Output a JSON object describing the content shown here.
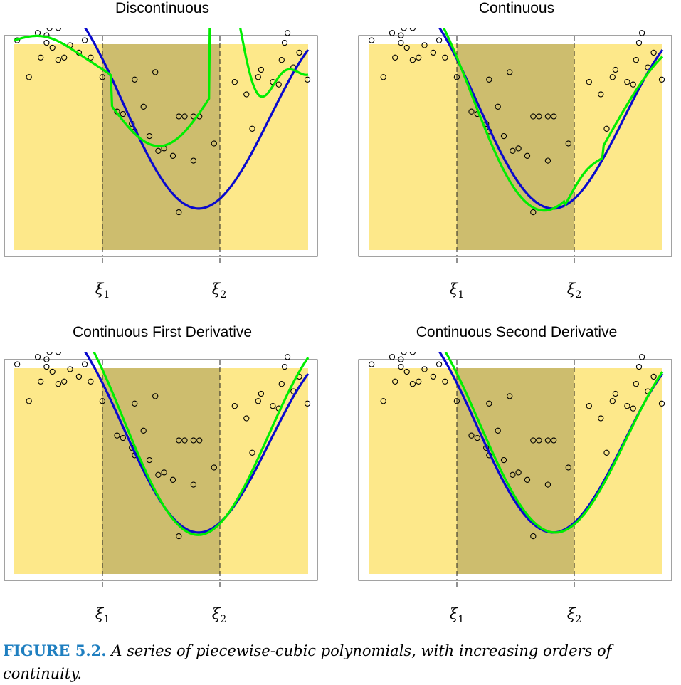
{
  "figure": {
    "label": "FIGURE 5.2.",
    "caption": "A series of piecewise-cubic polynomials, with increasing orders of continuity.",
    "knot_labels": [
      "ξ",
      "ξ"
    ],
    "knot_subscripts": [
      "1",
      "2"
    ]
  },
  "colors": {
    "outer_region": "#fde88a",
    "middle_region": "#cdbd6e",
    "true_function": "#0a0acd",
    "fit": "#00ee00",
    "points": "#000000",
    "caption_label": "#1f7fc0"
  },
  "chart_data": [
    {
      "type": "scatter",
      "title": "Discontinuous",
      "xlabel": "",
      "ylabel": "",
      "knots": [
        0.333,
        0.667
      ],
      "series": []
    },
    {
      "type": "scatter",
      "title": "Continuous",
      "xlabel": "",
      "ylabel": "",
      "knots": [
        0.333,
        0.667
      ],
      "series": []
    },
    {
      "type": "scatter",
      "title": "Continuous First Derivative",
      "xlabel": "",
      "ylabel": "",
      "knots": [
        0.333,
        0.667
      ],
      "series": []
    },
    {
      "type": "scatter",
      "title": "Continuous Second Derivative",
      "xlabel": "",
      "ylabel": "",
      "knots": [
        0.333,
        0.667
      ],
      "series": []
    }
  ],
  "points": [
    [
      0.01,
      0.47
    ],
    [
      0.05,
      0.32
    ],
    [
      0.07,
      0.58
    ],
    [
      0.08,
      0.55
    ],
    [
      0.08,
      0.5
    ],
    [
      0.09,
      0.4
    ],
    [
      0.11,
      0.46
    ],
    [
      0.11,
      0.49
    ],
    [
      0.12,
      0.52
    ],
    [
      0.13,
      0.44
    ],
    [
      0.15,
      0.52
    ],
    [
      0.15,
      0.39
    ],
    [
      0.17,
      0.4
    ],
    [
      0.19,
      0.45
    ],
    [
      0.21,
      0.55
    ],
    [
      0.22,
      0.42
    ],
    [
      0.24,
      0.47
    ],
    [
      0.26,
      0.4
    ],
    [
      0.3,
      0.32
    ],
    [
      0.35,
      0.18
    ],
    [
      0.37,
      0.17
    ],
    [
      0.4,
      0.13
    ],
    [
      0.41,
      0.31
    ],
    [
      0.41,
      0.1
    ],
    [
      0.44,
      0.2
    ],
    [
      0.46,
      0.08
    ],
    [
      0.48,
      0.34
    ],
    [
      0.49,
      0.02
    ],
    [
      0.51,
      0.03
    ],
    [
      0.54,
      0.0
    ],
    [
      0.56,
      0.16
    ],
    [
      0.56,
      -0.23
    ],
    [
      0.58,
      0.16
    ],
    [
      0.61,
      -0.02
    ],
    [
      0.61,
      0.16
    ],
    [
      0.63,
      0.16
    ],
    [
      0.68,
      0.05
    ],
    [
      0.75,
      0.3
    ],
    [
      0.79,
      0.25
    ],
    [
      0.81,
      0.11
    ],
    [
      0.83,
      0.32
    ],
    [
      0.84,
      0.35
    ],
    [
      0.88,
      0.3
    ],
    [
      0.9,
      0.29
    ],
    [
      0.91,
      0.39
    ],
    [
      0.92,
      0.46
    ],
    [
      0.93,
      0.5
    ],
    [
      0.95,
      0.36
    ],
    [
      0.97,
      0.42
    ],
    [
      1.0,
      0.55
    ],
    [
      1.02,
      0.53
    ],
    [
      1.02,
      0.31
    ]
  ]
}
